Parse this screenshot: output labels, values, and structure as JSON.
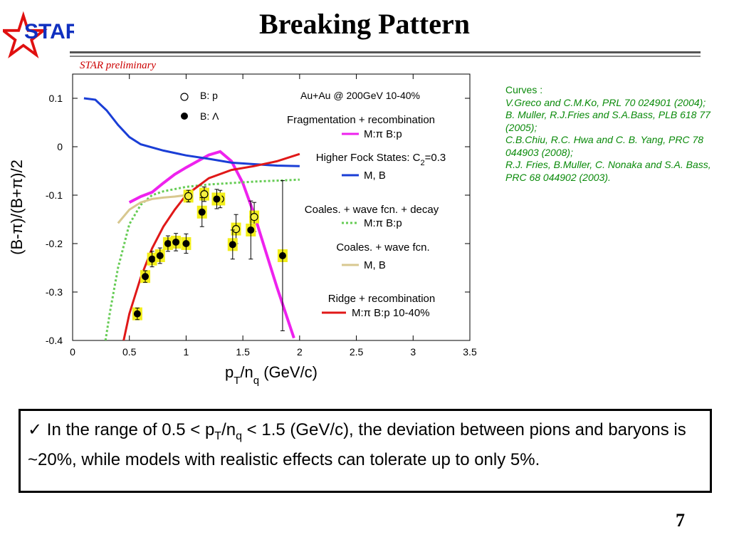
{
  "slide": {
    "title": "Breaking Pattern",
    "logo_text": "STAR",
    "preliminary": "STAR preliminary",
    "page_number": "7",
    "references": {
      "header": "Curves :",
      "items": [
        "V.Greco and C.M.Ko, PRL 70 024901 (2004);",
        "B. Muller, R.J.Fries and S.A.Bass, PLB 618 77 (2005);",
        "C.B.Chiu, R.C. Hwa and C. B. Yang, PRC 78 044903 (2008);",
        "R.J. Fries, B.Muller, C. Nonaka and S.A. Bass, PRC 68 044902 (2003)."
      ]
    },
    "conclusion": {
      "check": "✓",
      "prefix": "In the range of 0.5 < p",
      "sub1": "T",
      "mid": "/n",
      "sub2": "q",
      "suffix": " < 1.5 (GeV/c), the deviation between pions and baryons is ~20%, while models with realistic effects can tolerate up to only 5%."
    },
    "colors": {
      "logo_red": "#e01010",
      "logo_blue": "#1030c0",
      "refs_green": "#0a8a0a",
      "prelim_red": "#cc0000"
    }
  },
  "chart_data": {
    "type": "scatter",
    "title": "Au+Au @ 200GeV 10-40%",
    "xlabel": {
      "main": "p",
      "sub1": "T",
      "mid": "/n",
      "sub2": "q",
      "tail": " (GeV/c)"
    },
    "ylabel": "(B-π)/(B+π)/2",
    "xlim": [
      0,
      3.5
    ],
    "ylim": [
      -0.4,
      0.15
    ],
    "xticks": [
      "0",
      "0.5",
      "1",
      "1.5",
      "2",
      "2.5",
      "3",
      "3.5"
    ],
    "yticks": [
      "0.1",
      "0",
      "-0.1",
      "-0.2",
      "-0.3",
      "-0.4"
    ],
    "xtick_values": [
      0,
      0.5,
      1,
      1.5,
      2,
      2.5,
      3,
      3.5
    ],
    "ytick_values": [
      0.1,
      0,
      -0.1,
      -0.2,
      -0.3,
      -0.4
    ],
    "data_series": [
      {
        "name": "B: p",
        "marker": "open-circle",
        "points": [
          {
            "x": 1.02,
            "y": -0.102,
            "err": 0.012
          },
          {
            "x": 1.16,
            "y": -0.098,
            "err": 0.015
          },
          {
            "x": 1.3,
            "y": -0.108,
            "err": 0.018
          },
          {
            "x": 1.44,
            "y": -0.17,
            "err": 0.03
          },
          {
            "x": 1.6,
            "y": -0.145,
            "err": 0.03
          }
        ]
      },
      {
        "name": "B: Λ",
        "marker": "filled-circle",
        "points": [
          {
            "x": 0.57,
            "y": -0.345,
            "err": 0.012
          },
          {
            "x": 0.64,
            "y": -0.268,
            "err": 0.012
          },
          {
            "x": 0.7,
            "y": -0.232,
            "err": 0.016
          },
          {
            "x": 0.77,
            "y": -0.225,
            "err": 0.016
          },
          {
            "x": 0.84,
            "y": -0.2,
            "err": 0.016
          },
          {
            "x": 0.91,
            "y": -0.197,
            "err": 0.018
          },
          {
            "x": 1.0,
            "y": -0.2,
            "err": 0.02
          },
          {
            "x": 1.14,
            "y": -0.135,
            "err": 0.03
          },
          {
            "x": 1.27,
            "y": -0.108,
            "err": 0.02
          },
          {
            "x": 1.41,
            "y": -0.202,
            "err": 0.03
          },
          {
            "x": 1.57,
            "y": -0.172,
            "err": 0.06
          },
          {
            "x": 1.85,
            "y": -0.225,
            "err": 0.155
          }
        ]
      }
    ],
    "legend_groups": [
      {
        "header": "Fragmentation + recombination",
        "entry": "M:π B:p",
        "color": "#ee22ee",
        "dash": "solid"
      },
      {
        "header": "Higher Fock States: C",
        "header_sub": "2",
        "header_tail": "=0.3",
        "entry": "M, B",
        "color": "#1a3ed6",
        "dash": "solid"
      },
      {
        "header": "Coales. + wave fcn. + decay",
        "entry": "M:π B:p",
        "color": "#66cc55",
        "dash": "dotted"
      },
      {
        "header": "Coales. + wave fcn.",
        "entry": "M, B",
        "color": "#d8c890",
        "dash": "solid"
      },
      {
        "header": "Ridge + recombination",
        "entry": "M:π B:p 10-40%",
        "color": "#e01818",
        "dash": "solid"
      }
    ],
    "curves": [
      {
        "name": "Fragmentation + recombination M:π B:p",
        "color": "#ee22ee",
        "dash": "solid",
        "points": [
          [
            0.5,
            -0.115
          ],
          [
            0.6,
            -0.103
          ],
          [
            0.7,
            -0.094
          ],
          [
            0.8,
            -0.075
          ],
          [
            0.9,
            -0.057
          ],
          [
            1.0,
            -0.043
          ],
          [
            1.1,
            -0.03
          ],
          [
            1.2,
            -0.017
          ],
          [
            1.3,
            -0.01
          ],
          [
            1.4,
            -0.03
          ],
          [
            1.5,
            -0.075
          ],
          [
            1.6,
            -0.14
          ],
          [
            1.7,
            -0.215
          ],
          [
            1.8,
            -0.29
          ],
          [
            1.9,
            -0.36
          ],
          [
            1.95,
            -0.395
          ]
        ]
      },
      {
        "name": "Higher Fock States M, B",
        "color": "#1a3ed6",
        "dash": "solid",
        "points": [
          [
            0.1,
            0.1
          ],
          [
            0.2,
            0.097
          ],
          [
            0.3,
            0.075
          ],
          [
            0.4,
            0.045
          ],
          [
            0.5,
            0.02
          ],
          [
            0.6,
            0.005
          ],
          [
            0.8,
            -0.008
          ],
          [
            1.0,
            -0.018
          ],
          [
            1.2,
            -0.025
          ],
          [
            1.4,
            -0.033
          ],
          [
            1.6,
            -0.036
          ],
          [
            1.8,
            -0.039
          ],
          [
            2.0,
            -0.04
          ]
        ]
      },
      {
        "name": "Coales. + wave fcn. + decay M:π B:p",
        "color": "#66cc55",
        "dash": "dotted",
        "points": [
          [
            0.29,
            -0.4
          ],
          [
            0.33,
            -0.34
          ],
          [
            0.4,
            -0.25
          ],
          [
            0.5,
            -0.16
          ],
          [
            0.6,
            -0.12
          ],
          [
            0.7,
            -0.1
          ],
          [
            0.8,
            -0.092
          ],
          [
            1.0,
            -0.083
          ],
          [
            1.2,
            -0.078
          ],
          [
            1.4,
            -0.075
          ],
          [
            1.6,
            -0.072
          ],
          [
            1.8,
            -0.07
          ],
          [
            2.0,
            -0.068
          ]
        ]
      },
      {
        "name": "Coales. + wave fcn. M, B",
        "color": "#d8c890",
        "dash": "solid",
        "points": [
          [
            0.4,
            -0.158
          ],
          [
            0.5,
            -0.13
          ],
          [
            0.6,
            -0.115
          ],
          [
            0.7,
            -0.108
          ],
          [
            0.8,
            -0.105
          ],
          [
            0.9,
            -0.103
          ],
          [
            1.0,
            -0.1
          ]
        ]
      },
      {
        "name": "Ridge + recombination M:π B:p 10-40%",
        "color": "#e01818",
        "dash": "solid",
        "points": [
          [
            0.45,
            -0.4
          ],
          [
            0.5,
            -0.345
          ],
          [
            0.6,
            -0.27
          ],
          [
            0.7,
            -0.21
          ],
          [
            0.8,
            -0.165
          ],
          [
            0.9,
            -0.13
          ],
          [
            1.0,
            -0.1
          ],
          [
            1.2,
            -0.065
          ],
          [
            1.4,
            -0.048
          ],
          [
            1.6,
            -0.04
          ],
          [
            1.8,
            -0.03
          ],
          [
            2.0,
            -0.015
          ]
        ]
      }
    ],
    "highlight_color": "#f2ee1a"
  }
}
